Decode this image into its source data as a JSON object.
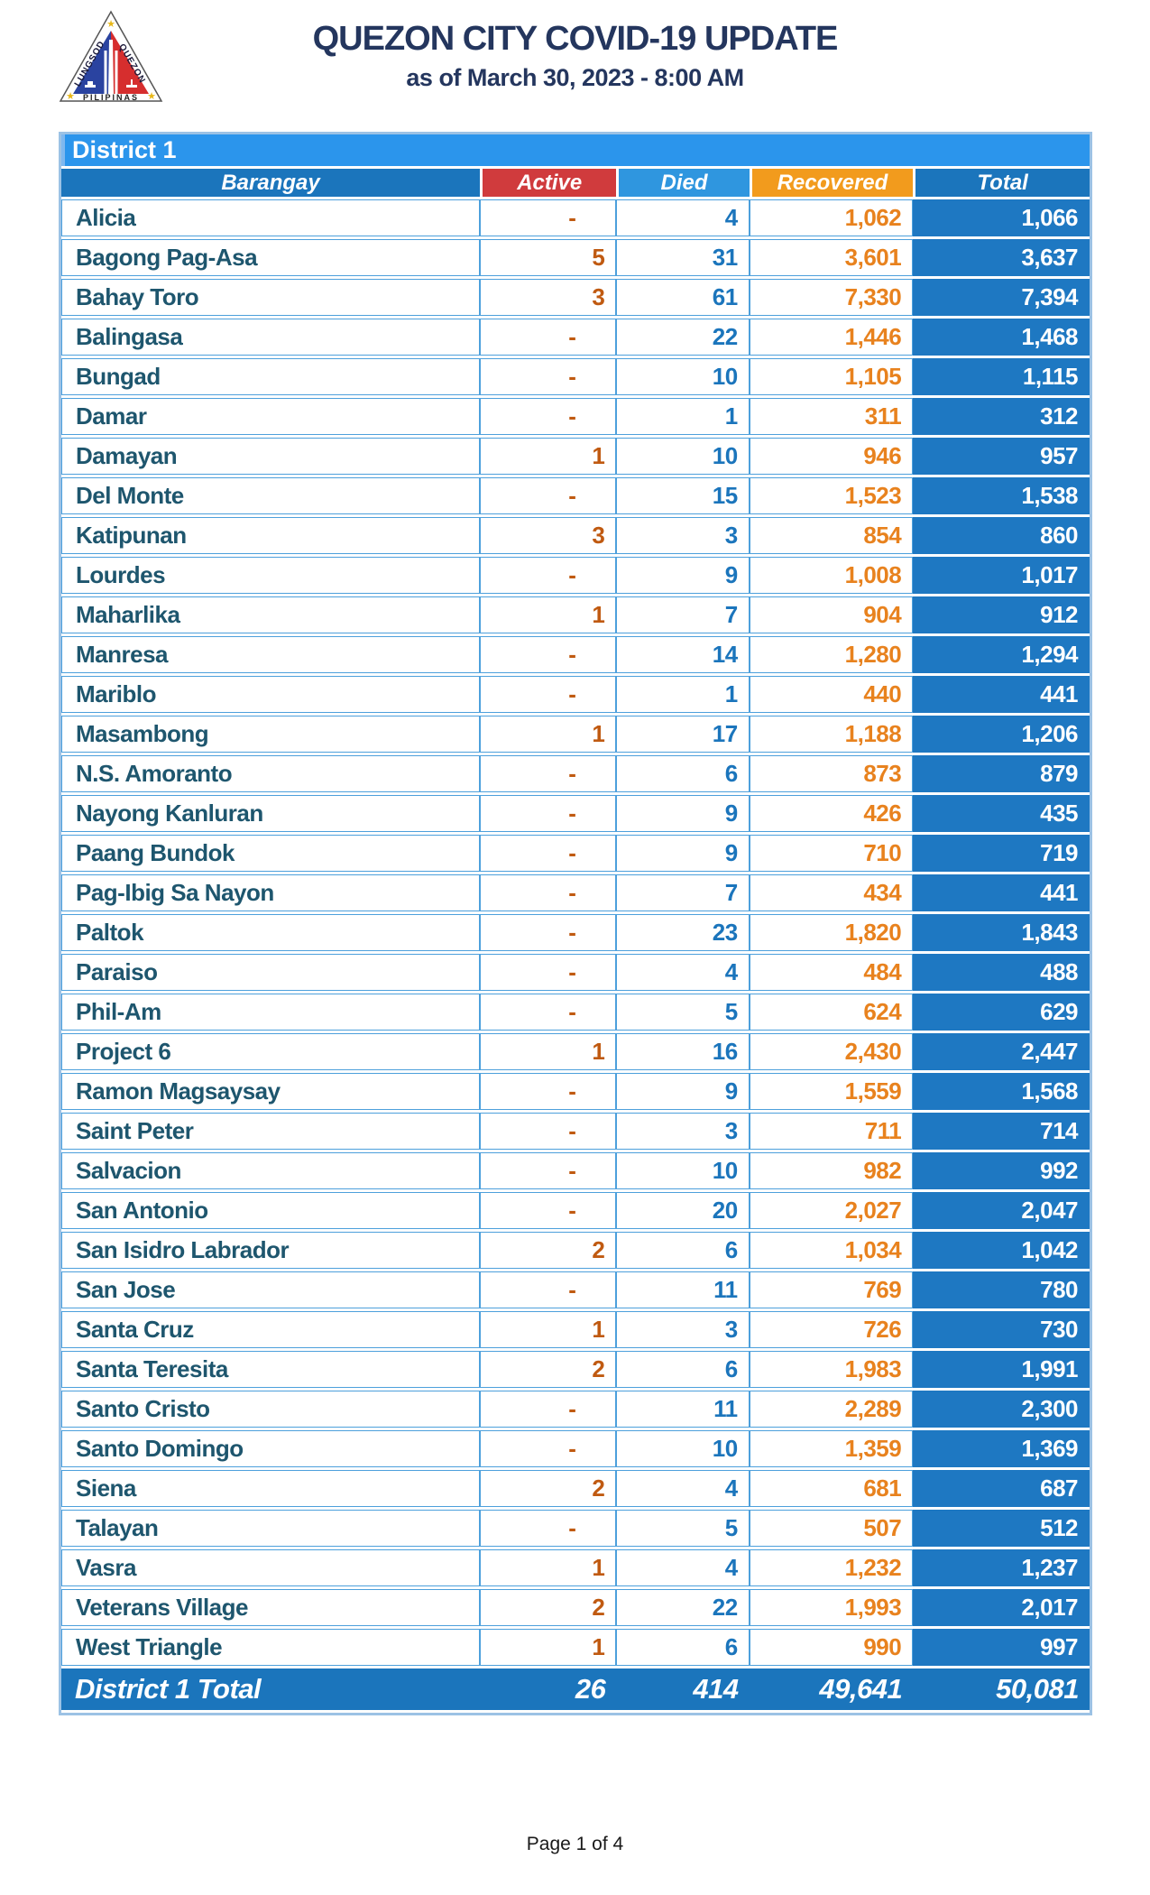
{
  "header": {
    "title": "QUEZON CITY COVID-19 UPDATE",
    "subtitle": "as of March 30, 2023 - 8:00 AM",
    "logo": {
      "name": "quezon-city-seal",
      "text_left": "LUNGSOD",
      "text_right": "QUEZON",
      "text_bottom": "PILIPINAS"
    }
  },
  "table": {
    "district_label": "District 1",
    "columns": [
      "Barangay",
      "Active",
      "Died",
      "Recovered",
      "Total"
    ],
    "rows": [
      {
        "barangay": "Alicia",
        "active": "-",
        "died": "4",
        "recovered": "1,062",
        "total": "1,066"
      },
      {
        "barangay": "Bagong Pag-Asa",
        "active": "5",
        "died": "31",
        "recovered": "3,601",
        "total": "3,637"
      },
      {
        "barangay": "Bahay Toro",
        "active": "3",
        "died": "61",
        "recovered": "7,330",
        "total": "7,394"
      },
      {
        "barangay": "Balingasa",
        "active": "-",
        "died": "22",
        "recovered": "1,446",
        "total": "1,468"
      },
      {
        "barangay": "Bungad",
        "active": "-",
        "died": "10",
        "recovered": "1,105",
        "total": "1,115"
      },
      {
        "barangay": "Damar",
        "active": "-",
        "died": "1",
        "recovered": "311",
        "total": "312"
      },
      {
        "barangay": "Damayan",
        "active": "1",
        "died": "10",
        "recovered": "946",
        "total": "957"
      },
      {
        "barangay": "Del Monte",
        "active": "-",
        "died": "15",
        "recovered": "1,523",
        "total": "1,538"
      },
      {
        "barangay": "Katipunan",
        "active": "3",
        "died": "3",
        "recovered": "854",
        "total": "860"
      },
      {
        "barangay": "Lourdes",
        "active": "-",
        "died": "9",
        "recovered": "1,008",
        "total": "1,017"
      },
      {
        "barangay": "Maharlika",
        "active": "1",
        "died": "7",
        "recovered": "904",
        "total": "912"
      },
      {
        "barangay": "Manresa",
        "active": "-",
        "died": "14",
        "recovered": "1,280",
        "total": "1,294"
      },
      {
        "barangay": "Mariblo",
        "active": "-",
        "died": "1",
        "recovered": "440",
        "total": "441"
      },
      {
        "barangay": "Masambong",
        "active": "1",
        "died": "17",
        "recovered": "1,188",
        "total": "1,206"
      },
      {
        "barangay": "N.S. Amoranto",
        "active": "-",
        "died": "6",
        "recovered": "873",
        "total": "879"
      },
      {
        "barangay": "Nayong Kanluran",
        "active": "-",
        "died": "9",
        "recovered": "426",
        "total": "435"
      },
      {
        "barangay": "Paang Bundok",
        "active": "-",
        "died": "9",
        "recovered": "710",
        "total": "719"
      },
      {
        "barangay": "Pag-Ibig Sa Nayon",
        "active": "-",
        "died": "7",
        "recovered": "434",
        "total": "441"
      },
      {
        "barangay": "Paltok",
        "active": "-",
        "died": "23",
        "recovered": "1,820",
        "total": "1,843"
      },
      {
        "barangay": "Paraiso",
        "active": "-",
        "died": "4",
        "recovered": "484",
        "total": "488"
      },
      {
        "barangay": "Phil-Am",
        "active": "-",
        "died": "5",
        "recovered": "624",
        "total": "629"
      },
      {
        "barangay": "Project 6",
        "active": "1",
        "died": "16",
        "recovered": "2,430",
        "total": "2,447"
      },
      {
        "barangay": "Ramon Magsaysay",
        "active": "-",
        "died": "9",
        "recovered": "1,559",
        "total": "1,568"
      },
      {
        "barangay": "Saint Peter",
        "active": "-",
        "died": "3",
        "recovered": "711",
        "total": "714"
      },
      {
        "barangay": "Salvacion",
        "active": "-",
        "died": "10",
        "recovered": "982",
        "total": "992"
      },
      {
        "barangay": "San Antonio",
        "active": "-",
        "died": "20",
        "recovered": "2,027",
        "total": "2,047"
      },
      {
        "barangay": "San Isidro Labrador",
        "active": "2",
        "died": "6",
        "recovered": "1,034",
        "total": "1,042"
      },
      {
        "barangay": "San Jose",
        "active": "-",
        "died": "11",
        "recovered": "769",
        "total": "780"
      },
      {
        "barangay": "Santa Cruz",
        "active": "1",
        "died": "3",
        "recovered": "726",
        "total": "730"
      },
      {
        "barangay": "Santa Teresita",
        "active": "2",
        "died": "6",
        "recovered": "1,983",
        "total": "1,991"
      },
      {
        "barangay": "Santo Cristo",
        "active": "-",
        "died": "11",
        "recovered": "2,289",
        "total": "2,300"
      },
      {
        "barangay": "Santo Domingo",
        "active": "-",
        "died": "10",
        "recovered": "1,359",
        "total": "1,369"
      },
      {
        "barangay": "Siena",
        "active": "2",
        "died": "4",
        "recovered": "681",
        "total": "687"
      },
      {
        "barangay": "Talayan",
        "active": "-",
        "died": "5",
        "recovered": "507",
        "total": "512"
      },
      {
        "barangay": "Vasra",
        "active": "1",
        "died": "4",
        "recovered": "1,232",
        "total": "1,237"
      },
      {
        "barangay": "Veterans Village",
        "active": "2",
        "died": "22",
        "recovered": "1,993",
        "total": "2,017"
      },
      {
        "barangay": "West Triangle",
        "active": "1",
        "died": "6",
        "recovered": "990",
        "total": "997"
      }
    ],
    "total_row": {
      "label": "District 1 Total",
      "active": "26",
      "died": "414",
      "recovered": "49,641",
      "total": "50,081"
    }
  },
  "footer": {
    "page_label": "Page 1 of 4"
  },
  "colors": {
    "title_navy": "#24365E",
    "district_bar_blue": "#2B95EC",
    "header_dark_blue": "#1B75BC",
    "died_header_blue": "#2F96DF",
    "active_header_red": "#D03B3D",
    "recovered_header_orange": "#F29B1D",
    "total_cell_blue": "#1E78C2",
    "cell_border_blue": "#4DA0DC",
    "outer_border_light": "#9CC2E5",
    "barangay_text": "#1E566E",
    "active_text": "#C05A11",
    "died_text": "#1B75BC",
    "recovered_text": "#E8821E"
  }
}
